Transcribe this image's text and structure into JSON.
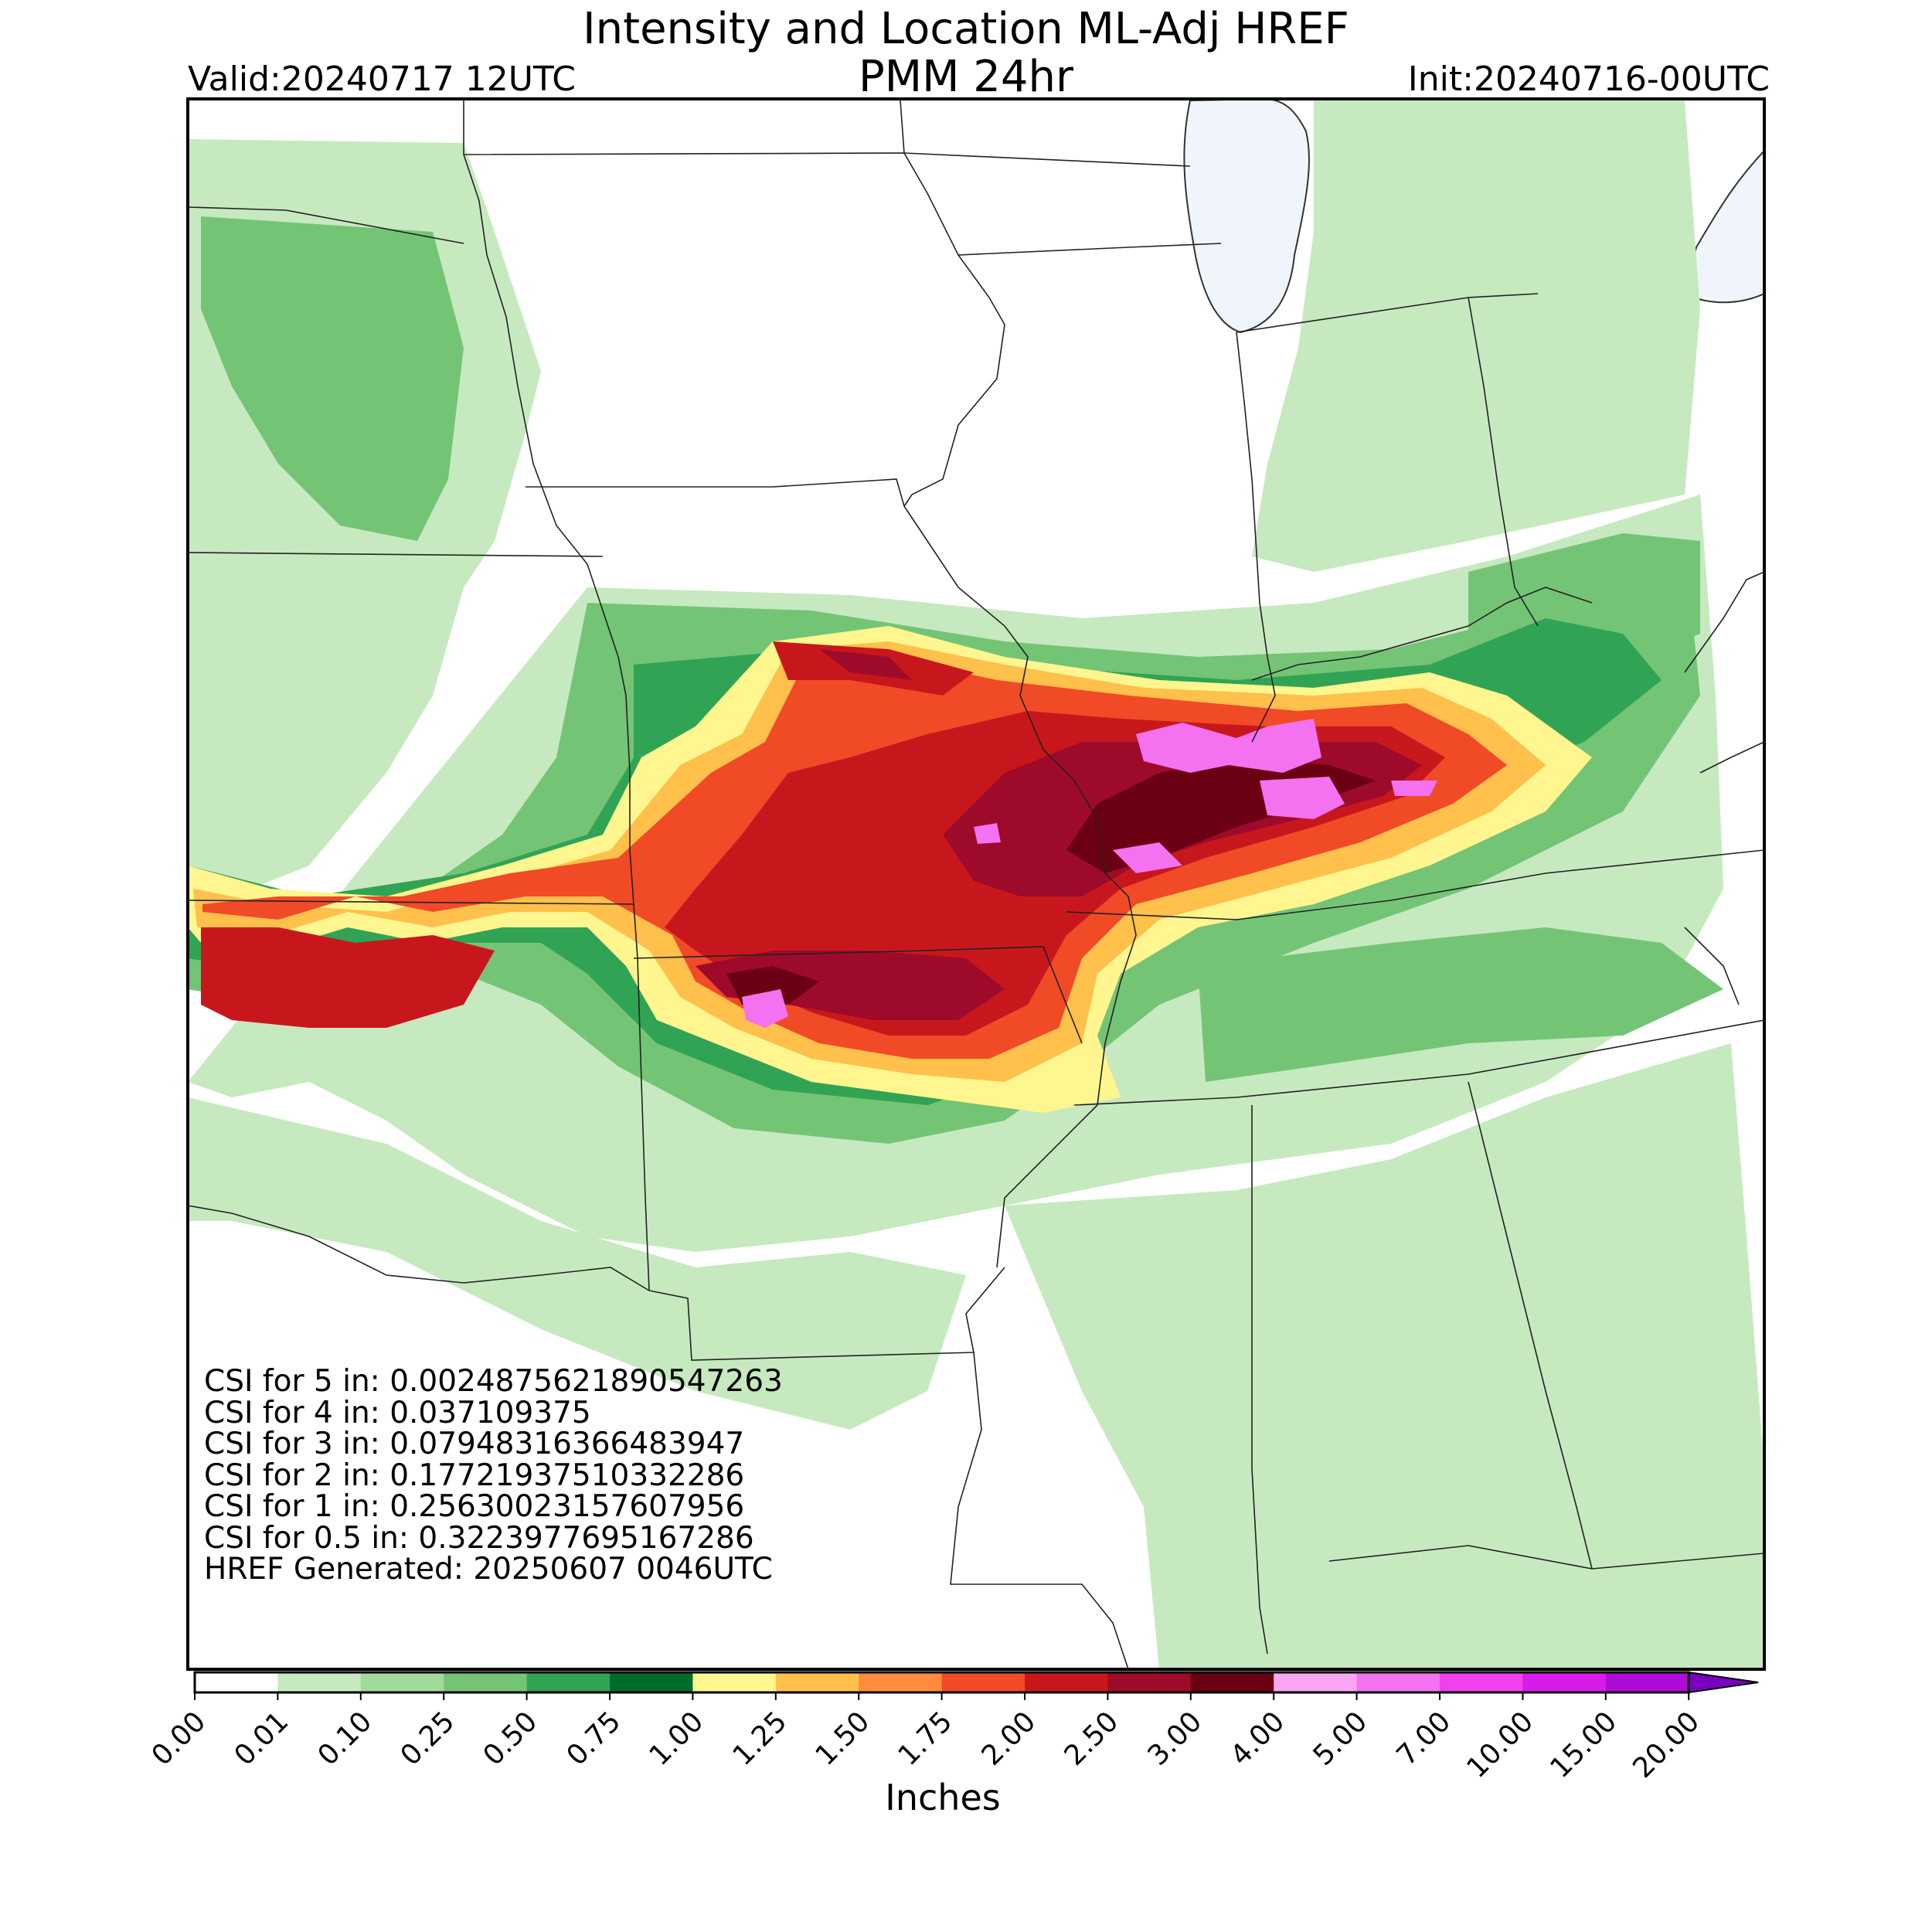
{
  "header": {
    "title_line1": "Intensity and Location ML-Adj HREF",
    "title_line2": "PMM 24hr",
    "valid": "Valid:20240717 12UTC",
    "init": "Init:20240716-00UTC"
  },
  "stats": {
    "lines": [
      "CSI for 5 in: 0.0024875621890547263",
      "CSI for 4 in: 0.037109375",
      "CSI for 3 in: 0.07948316366483947",
      "CSI for 2 in: 0.17721937510332286",
      "CSI for 1 in: 0.25630023157607956",
      "CSI for 0.5 in: 0.3223977695167286",
      "HREF Generated: 20250607 0046UTC"
    ]
  },
  "colorbar": {
    "label": "Inches",
    "ticks": [
      "0.00",
      "0.01",
      "0.10",
      "0.25",
      "0.50",
      "0.75",
      "1.00",
      "1.25",
      "1.50",
      "1.75",
      "2.00",
      "2.50",
      "3.00",
      "4.00",
      "5.00",
      "7.00",
      "10.00",
      "15.00",
      "20.00"
    ],
    "colors": [
      "#ffffff",
      "#c7e9c0",
      "#a1d99b",
      "#74c476",
      "#31a354",
      "#006d2c",
      "#fff68f",
      "#ffc04c",
      "#ff8c3a",
      "#f04a27",
      "#c8171c",
      "#9e0a2a",
      "#6b0012",
      "#f9a6f5",
      "#f472f0",
      "#f040ef",
      "#d81be8",
      "#b00ad6",
      "#7a00c0"
    ]
  },
  "map": {
    "water_color": "#f0f5fb",
    "border_color": "#000000"
  }
}
